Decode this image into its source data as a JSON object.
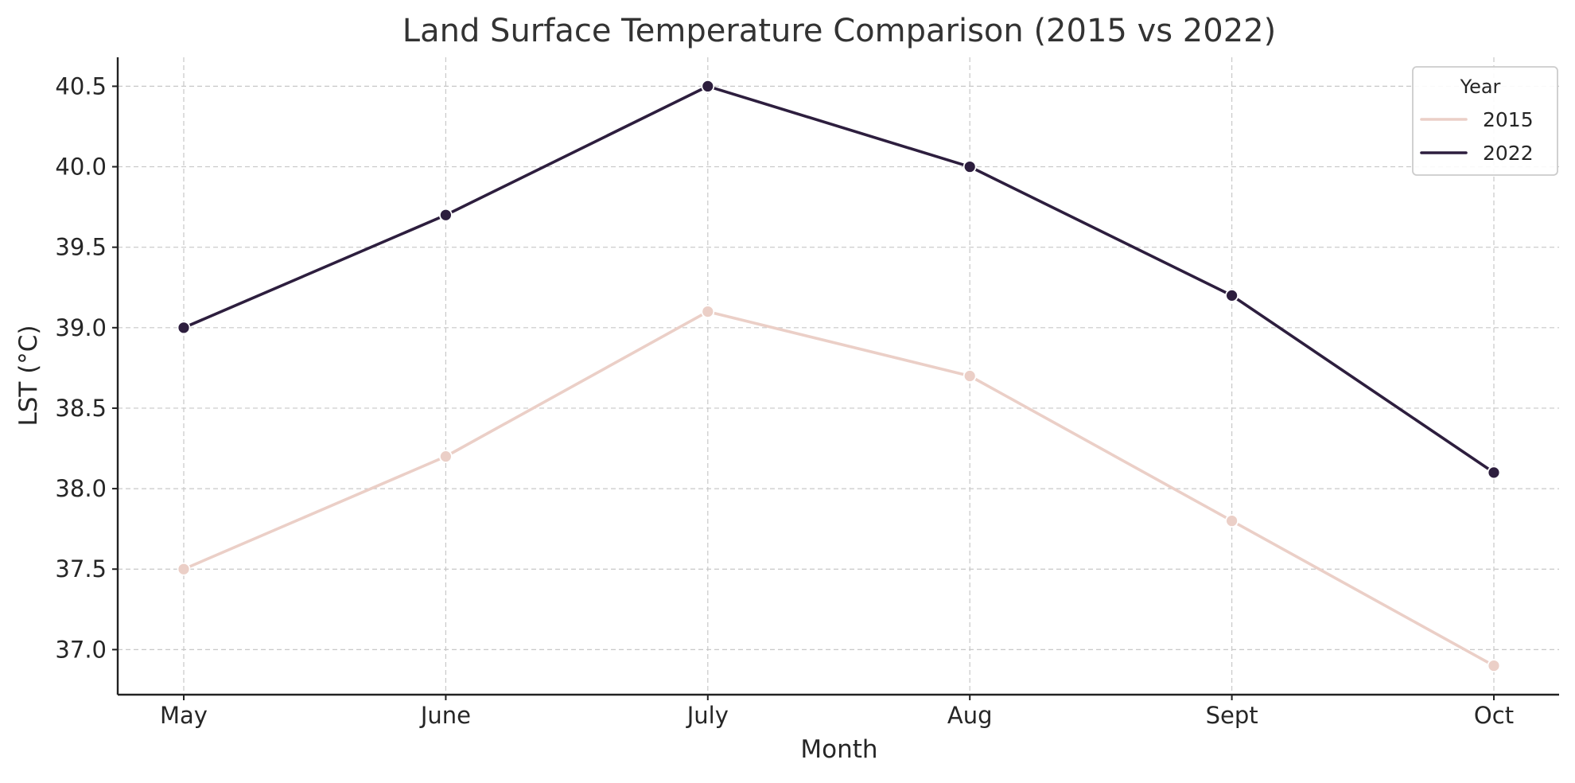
{
  "chart_data": {
    "type": "line",
    "title": "Land Surface Temperature Comparison (2015 vs 2022)",
    "xlabel": "Month",
    "ylabel": "LST (°C)",
    "categories": [
      "May",
      "June",
      "July",
      "Aug",
      "Sept",
      "Oct"
    ],
    "ylim": [
      36.72,
      40.68
    ],
    "yticks": [
      37.0,
      37.5,
      38.0,
      38.5,
      39.0,
      39.5,
      40.0,
      40.5
    ],
    "ytick_labels": [
      "37.0",
      "37.5",
      "38.0",
      "38.5",
      "39.0",
      "39.5",
      "40.0",
      "40.5"
    ],
    "grid": true,
    "legend": {
      "title": "Year",
      "placement": "top-right"
    },
    "series": [
      {
        "name": "2015",
        "color": "#ebcfc7",
        "values": [
          37.5,
          38.2,
          39.1,
          38.7,
          37.8,
          36.9
        ]
      },
      {
        "name": "2022",
        "color": "#2d1e3e",
        "values": [
          39.0,
          39.7,
          40.5,
          40.0,
          39.2,
          38.1
        ]
      }
    ]
  }
}
